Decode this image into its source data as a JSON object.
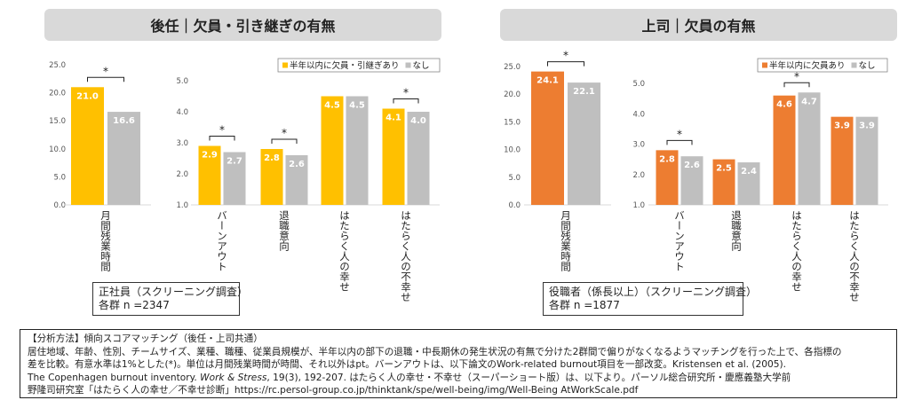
{
  "panels": {
    "left": {
      "title": "後任｜欠員・引き継ぎの有無",
      "info_line1": "正社員（スクリーニング調査）",
      "info_line2": "各群 n =2347"
    },
    "right": {
      "title": "上司｜欠員の有無",
      "info_line1": "役職者（係長以上）（スクリーニング調査）",
      "info_line2": "各群 n =1877"
    }
  },
  "colors": {
    "left_primary": "#FFC000",
    "right_primary": "#ED7D31",
    "secondary": "#BFBFBF",
    "grid": "#D9D9D9"
  },
  "note": {
    "line1": "【分析方法】傾向スコアマッチング（後任・上司共通）",
    "line2": "居住地域、年齢、性別、チームサイズ、業種、職種、従業員規模が、半年以内の部下の退職・中長期休の発生状況の有無で分けた2群間で偏りがなくなるようマッチングを行った上で、各指標の",
    "line3": "差を比較。有意水準は1%とした(*)。単位は月間残業時間が時間、それ以外はpt。バーンアウトは、以下論文のWork-related burnout項目を一部改変。Kristensen et al. (2005).",
    "line4a": "The Copenhagen burnout inventory. ",
    "line4b": "Work & Stress",
    "line4c": ", 19(3), 192-207. はたらく人の幸せ・不幸せ（スーパーショート版）は、以下より。パーソル総合研究所・慶應義塾大学前",
    "line5": "野隆司研究室「はたらく人の幸せ／不幸せ診断」https://rc.persol-group.co.jp/thinktank/spe/well-being/img/Well-Being AtWorkScale.pdf"
  },
  "chart_data": [
    {
      "type": "bar",
      "title": "後任｜欠員・引き継ぎの有無",
      "legend_position": "top-right",
      "series_names": [
        "半年以内に欠員・引継ぎあり",
        "なし"
      ],
      "subcharts": [
        {
          "ylim": [
            0,
            25
          ],
          "yticks": [
            "0.0",
            "5.0",
            "10.0",
            "15.0",
            "20.0",
            "25.0"
          ],
          "categories": [
            "月間残業時間"
          ],
          "series": [
            {
              "name": "半年以内に欠員・引継ぎあり",
              "values": [
                21.0
              ],
              "labels": [
                "21.0"
              ]
            },
            {
              "name": "なし",
              "values": [
                16.6
              ],
              "labels": [
                "16.6"
              ]
            }
          ],
          "significant": [
            true
          ]
        },
        {
          "ylim": [
            1,
            5
          ],
          "yticks": [
            "1.0",
            "2.0",
            "3.0",
            "4.0",
            "5.0"
          ],
          "categories": [
            "バーンアウト",
            "退職意向",
            "はたらく人の幸せ",
            "はたらく人の不幸せ"
          ],
          "series": [
            {
              "name": "半年以内に欠員・引継ぎあり",
              "values": [
                2.9,
                2.8,
                4.5,
                4.1
              ],
              "labels": [
                "2.9",
                "2.8",
                "4.5",
                "4.1"
              ]
            },
            {
              "name": "なし",
              "values": [
                2.7,
                2.6,
                4.5,
                4.0
              ],
              "labels": [
                "2.7",
                "2.6",
                "4.5",
                "4.0"
              ]
            }
          ],
          "significant": [
            true,
            true,
            false,
            true
          ]
        }
      ]
    },
    {
      "type": "bar",
      "title": "上司｜欠員の有無",
      "legend_position": "top-right",
      "series_names": [
        "半年以内に欠員あり",
        "なし"
      ],
      "subcharts": [
        {
          "ylim": [
            0,
            25
          ],
          "yticks": [
            "0.0",
            "5.0",
            "10.0",
            "15.0",
            "20.0",
            "25.0"
          ],
          "categories": [
            "月間残業時間"
          ],
          "series": [
            {
              "name": "半年以内に欠員あり",
              "values": [
                24.1
              ],
              "labels": [
                "24.1"
              ]
            },
            {
              "name": "なし",
              "values": [
                22.1
              ],
              "labels": [
                "22.1"
              ]
            }
          ],
          "significant": [
            true
          ]
        },
        {
          "ylim": [
            1,
            5
          ],
          "yticks": [
            "1.0",
            "2.0",
            "3.0",
            "4.0",
            "5.0"
          ],
          "categories": [
            "バーンアウト",
            "退職意向",
            "はたらく人の幸せ",
            "はたらく人の不幸せ"
          ],
          "series": [
            {
              "name": "半年以内に欠員あり",
              "values": [
                2.8,
                2.5,
                4.6,
                3.9
              ],
              "labels": [
                "2.8",
                "2.5",
                "4.6",
                "3.9"
              ]
            },
            {
              "name": "なし",
              "values": [
                2.6,
                2.4,
                4.7,
                3.9
              ],
              "labels": [
                "2.6",
                "2.4",
                "4.7",
                "3.9"
              ]
            }
          ],
          "significant": [
            true,
            false,
            true,
            false
          ]
        }
      ]
    }
  ]
}
